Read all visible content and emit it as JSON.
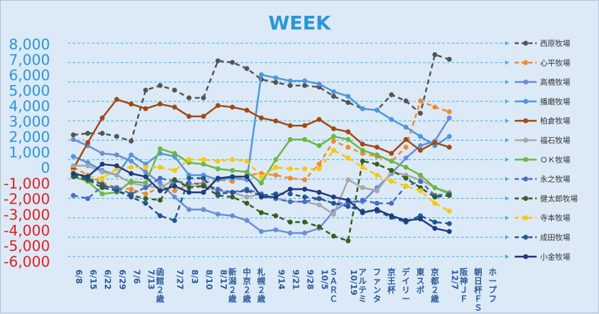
{
  "colors": {
    "background": "#dce9f6",
    "grid": "#3db2e3",
    "ytick_positive": "#2a97d8",
    "ytick_negative": "#e02020"
  },
  "chart_data": {
    "type": "line",
    "title": "WEEK",
    "ylim": [
      -6000,
      8000
    ],
    "yticks": [
      8000,
      7000,
      6000,
      5000,
      4000,
      3000,
      2000,
      1000,
      0,
      -1000,
      -2000,
      -3000,
      -4000,
      -5000,
      -6000
    ],
    "ytick_labels": [
      "8,000",
      "7,000",
      "6,000",
      "5,000",
      "4,000",
      "3,000",
      "2,000",
      "1,000",
      "0",
      "-1,000",
      "-2,000",
      "-3,000",
      "-4,000",
      "-5,000",
      "-6,000"
    ],
    "grid": "horizontal-dashed",
    "legend_placement": "right",
    "categories": [
      "6/8",
      "6/15",
      "6/22",
      "6/29",
      "7/6",
      "7/13",
      "函館２歳",
      "7/27",
      "8/3",
      "8/10",
      "8/17",
      "新潟２歳",
      "中京２歳",
      "札幌２歳",
      "9/14",
      "9/21",
      "9/28",
      "10/5",
      "ＳＡＲＣ",
      "10/19",
      "アルテミ",
      "ファンタ",
      "京王杯",
      "デイリー",
      "東スポ",
      "京都２歳",
      "12/7",
      "阪神ＪＦ",
      "朝日杯ＦＳ",
      "ホープフ"
    ],
    "series": [
      {
        "name": "西原牧場",
        "color": "#555555",
        "dash": true,
        "values": [
          2100,
          2200,
          2200,
          2000,
          1700,
          5000,
          5300,
          5000,
          4500,
          4500,
          6900,
          6800,
          6400,
          5700,
          5500,
          5300,
          5300,
          5200,
          4600,
          4200,
          3800,
          3700,
          4700,
          4300,
          3500,
          7300,
          7000,
          null,
          null,
          null
        ]
      },
      {
        "name": "心平牧場",
        "color": "#f08a30",
        "dash": true,
        "values": [
          0,
          -500,
          -1000,
          -1300,
          -1400,
          -1700,
          -1300,
          -1500,
          -1100,
          -1000,
          -800,
          -900,
          -500,
          -400,
          -500,
          -700,
          -800,
          200,
          1700,
          1300,
          900,
          700,
          400,
          1300,
          4300,
          3900,
          3600,
          null,
          null,
          null
        ]
      },
      {
        "name": "高橋牧場",
        "color": "#6a8fd6",
        "dash": false,
        "values": [
          1800,
          1400,
          900,
          800,
          400,
          -300,
          -1000,
          -1900,
          -2700,
          -2700,
          -3000,
          -3100,
          -3400,
          -4100,
          -4000,
          -4200,
          -4200,
          -3900,
          -2800,
          -2200,
          -2200,
          -1300,
          -400,
          600,
          1400,
          1700,
          3200,
          null,
          null,
          null
        ]
      },
      {
        "name": "播磨牧場",
        "color": "#4f97dc",
        "dash": false,
        "values": [
          700,
          300,
          -200,
          -500,
          800,
          200,
          900,
          700,
          -500,
          -500,
          -800,
          -700,
          -800,
          6000,
          5800,
          5600,
          5600,
          5400,
          4900,
          4600,
          3800,
          3700,
          3100,
          2600,
          2000,
          1400,
          2000,
          null,
          null,
          null
        ]
      },
      {
        "name": "柏倉牧場",
        "color": "#a04a14",
        "dash": false,
        "values": [
          -100,
          1600,
          3200,
          4400,
          4100,
          3800,
          4100,
          3900,
          3300,
          3300,
          4000,
          3900,
          3700,
          3200,
          3000,
          2700,
          2700,
          3100,
          2500,
          2300,
          1500,
          1300,
          900,
          1800,
          1100,
          1600,
          1300,
          null,
          null,
          null
        ]
      },
      {
        "name": "福石牧場",
        "color": "#a8a8a8",
        "dash": false,
        "values": [
          100,
          100,
          -300,
          -500,
          -1000,
          -1200,
          -1300,
          -800,
          -1200,
          -1200,
          -1500,
          -1600,
          -1900,
          -1700,
          -2000,
          -2200,
          -2200,
          -2400,
          -3000,
          -800,
          -1300,
          -1500,
          -300,
          -500,
          -800,
          -1300,
          -1600,
          null,
          null,
          null
        ]
      },
      {
        "name": "ＯＫ牧場",
        "color": "#6bb843",
        "dash": false,
        "values": [
          -600,
          -900,
          -1700,
          -1600,
          -900,
          -1000,
          1200,
          900,
          300,
          200,
          -100,
          -200,
          -300,
          -1000,
          500,
          1800,
          1800,
          1400,
          2000,
          1800,
          1100,
          800,
          400,
          0,
          -500,
          -1300,
          -1700,
          null,
          null,
          null
        ]
      },
      {
        "name": "永之牧場",
        "color": "#4a6cc6",
        "dash": true,
        "values": [
          -1800,
          -2000,
          -1200,
          -1300,
          -1700,
          -1300,
          -700,
          -900,
          -1000,
          -1100,
          -1400,
          -1600,
          -1400,
          -1700,
          -2000,
          -2200,
          -2200,
          -2000,
          -2300,
          -2300,
          -2100,
          -2300,
          -2300,
          -1200,
          -900,
          -1800,
          -1700,
          null,
          null,
          null
        ]
      },
      {
        "name": "健太郎牧場",
        "color": "#36601f",
        "dash": true,
        "values": [
          -600,
          -800,
          -1300,
          -1500,
          -1800,
          -2000,
          -2100,
          -800,
          -1300,
          -1200,
          -1800,
          -1900,
          -2300,
          -2900,
          -3100,
          -3500,
          -3500,
          -3800,
          -4400,
          -4700,
          400,
          200,
          -200,
          -700,
          -1300,
          -1900,
          -1800,
          null,
          null,
          null
        ]
      },
      {
        "name": "寺本牧場",
        "color": "#f6c810",
        "dash": true,
        "values": [
          -300,
          -600,
          -700,
          -100,
          0,
          0,
          0,
          -200,
          500,
          500,
          400,
          500,
          400,
          -600,
          0,
          -100,
          -100,
          -100,
          1100,
          600,
          0,
          -500,
          -900,
          -1200,
          -1500,
          -2300,
          -2800,
          null,
          null,
          null
        ]
      },
      {
        "name": "成田牧場",
        "color": "#25578f",
        "dash": true,
        "values": [
          -500,
          -700,
          -1100,
          -1500,
          -1900,
          -2300,
          -3100,
          -3400,
          -700,
          -700,
          -1700,
          -1600,
          -1500,
          -1800,
          -1700,
          -1700,
          -1900,
          -2000,
          -2300,
          -2500,
          -2800,
          -2800,
          -3200,
          -3500,
          -3100,
          -3500,
          -3600,
          null,
          null,
          null
        ]
      },
      {
        "name": "小金牧場",
        "color": "#1f3b80",
        "dash": false,
        "values": [
          -400,
          -600,
          200,
          100,
          -400,
          -600,
          -1500,
          -1200,
          -1600,
          -1600,
          -700,
          -600,
          -600,
          -1900,
          -1900,
          -1400,
          -1400,
          -1600,
          -1900,
          -2100,
          -2900,
          -2700,
          -3100,
          -3400,
          -3300,
          -3900,
          -4100,
          null,
          null,
          null
        ]
      }
    ]
  }
}
